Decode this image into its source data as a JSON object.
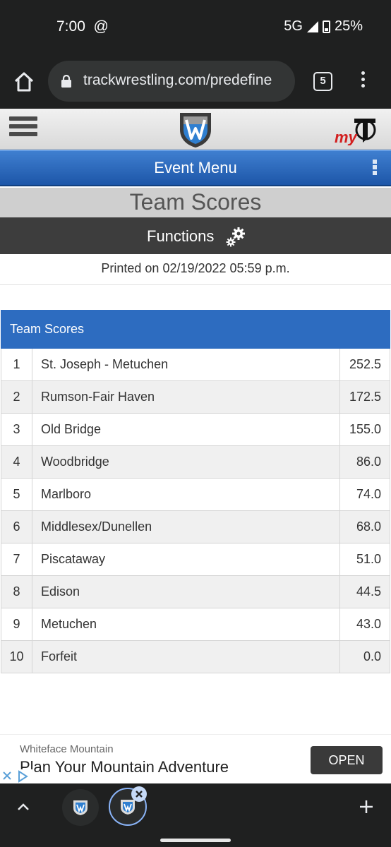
{
  "status_bar": {
    "time": "7:00",
    "at_icon": "@",
    "network": "5G",
    "battery": "25%"
  },
  "browser": {
    "url": "trackwrestling.com/predefine",
    "tab_count": "5"
  },
  "site": {
    "event_menu_label": "Event Menu",
    "page_title": "Team Scores",
    "functions_label": "Functions",
    "printed_on": "Printed on 02/19/2022 05:59 p.m.",
    "my_logo_text": "my"
  },
  "scores": {
    "header": "Team Scores",
    "rows": [
      {
        "rank": "1",
        "team": "St. Joseph - Metuchen",
        "score": "252.5"
      },
      {
        "rank": "2",
        "team": "Rumson-Fair Haven",
        "score": "172.5"
      },
      {
        "rank": "3",
        "team": "Old Bridge",
        "score": "155.0"
      },
      {
        "rank": "4",
        "team": "Woodbridge",
        "score": "86.0"
      },
      {
        "rank": "5",
        "team": "Marlboro",
        "score": "74.0"
      },
      {
        "rank": "6",
        "team": "Middlesex/Dunellen",
        "score": "68.0"
      },
      {
        "rank": "7",
        "team": "Piscataway",
        "score": "51.0"
      },
      {
        "rank": "8",
        "team": "Edison",
        "score": "44.5"
      },
      {
        "rank": "9",
        "team": "Metuchen",
        "score": "43.0"
      },
      {
        "rank": "10",
        "team": "Forfeit",
        "score": "0.0"
      }
    ]
  },
  "ad": {
    "advertiser": "Whiteface Mountain",
    "headline": "Plan Your Mountain Adventure",
    "cta": "OPEN"
  },
  "colors": {
    "table_header": "#2d6cc0",
    "event_menu": "#1d56a8",
    "functions_bar": "#3d3d3d",
    "browser_chrome": "#1f2020"
  }
}
